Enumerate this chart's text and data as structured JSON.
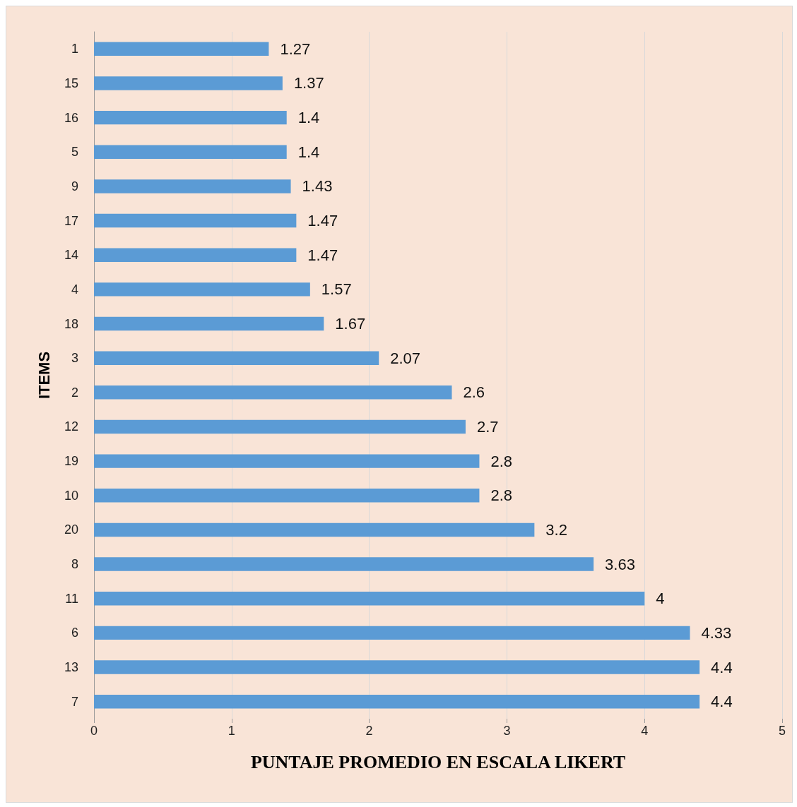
{
  "chart_data": {
    "type": "bar",
    "orientation": "horizontal",
    "xlabel": "PUNTAJE PROMEDIO EN ESCALA LIKERT",
    "ylabel": "ITEMS",
    "categories": [
      "1",
      "15",
      "16",
      "5",
      "9",
      "17",
      "14",
      "4",
      "18",
      "3",
      "2",
      "12",
      "19",
      "10",
      "20",
      "8",
      "11",
      "6",
      "13",
      "7"
    ],
    "values": [
      1.27,
      1.37,
      1.4,
      1.4,
      1.43,
      1.47,
      1.47,
      1.57,
      1.67,
      2.07,
      2.6,
      2.7,
      2.8,
      2.8,
      3.2,
      3.63,
      4,
      4.33,
      4.4,
      4.4
    ],
    "color": "#5b9bd5",
    "xlim": [
      0,
      5
    ],
    "xticks": [
      0,
      1,
      2,
      3,
      4,
      5
    ],
    "grid": "x",
    "data_labels": true
  }
}
